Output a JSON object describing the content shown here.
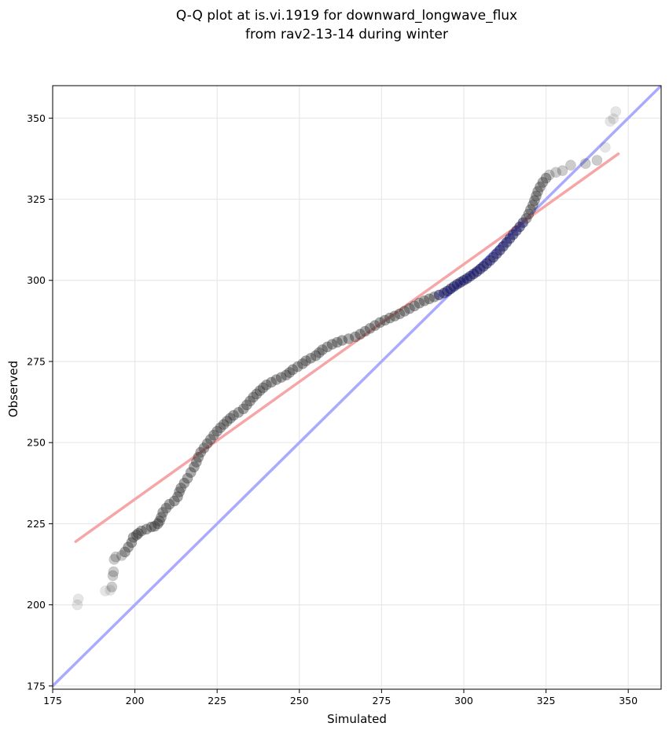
{
  "chart_data": {
    "type": "scatter",
    "title_lines": [
      "Q-Q plot at is.vi.1919 for downward_longwave_flux",
      "from rav2-13-14 during winter"
    ],
    "xlabel": "Simulated",
    "ylabel": "Observed",
    "xlim": [
      175,
      360
    ],
    "ylim": [
      174,
      360
    ],
    "xticks": [
      175,
      200,
      225,
      250,
      275,
      300,
      325,
      350
    ],
    "yticks": [
      175,
      200,
      225,
      250,
      275,
      300,
      325,
      350
    ],
    "grid": true,
    "colors": {
      "points": "#333333",
      "one_to_one": "#aaaaff",
      "fit": "#f6a6a6",
      "middle_points": "#1a1a66"
    },
    "series": [
      {
        "name": "quantile points",
        "points": [
          [
            182.5,
            200
          ],
          [
            182.8,
            201.8
          ],
          [
            191,
            204.3
          ],
          [
            192.5,
            204.5
          ],
          [
            193,
            205.5
          ],
          [
            193.3,
            209
          ],
          [
            193.5,
            210.2
          ],
          [
            193.7,
            214
          ],
          [
            194.2,
            214.8
          ],
          [
            196,
            215.2
          ],
          [
            197,
            216.3
          ],
          [
            198,
            217.8
          ],
          [
            199,
            219.2
          ],
          [
            199.5,
            220.8
          ],
          [
            200.5,
            221.5
          ],
          [
            201,
            222
          ],
          [
            202,
            222.8
          ],
          [
            203.5,
            223.3
          ],
          [
            205,
            224
          ],
          [
            206,
            224.2
          ],
          [
            207,
            225
          ],
          [
            207.5,
            225.8
          ],
          [
            208,
            227
          ],
          [
            208.5,
            228.5
          ],
          [
            209.5,
            229.8
          ],
          [
            210.5,
            231
          ],
          [
            212,
            232
          ],
          [
            213,
            233.3
          ],
          [
            213.5,
            234.8
          ],
          [
            214,
            236
          ],
          [
            215,
            237.5
          ],
          [
            216,
            239
          ],
          [
            217,
            240.8
          ],
          [
            218,
            242.5
          ],
          [
            218.7,
            244
          ],
          [
            219.3,
            245.5
          ],
          [
            220,
            247
          ],
          [
            221,
            248.3
          ],
          [
            222,
            249.7
          ],
          [
            223,
            251
          ],
          [
            224,
            252.3
          ],
          [
            225,
            253.5
          ],
          [
            226,
            254.6
          ],
          [
            227,
            255.6
          ],
          [
            228,
            256.6
          ],
          [
            229,
            257.5
          ],
          [
            230,
            258.4
          ],
          [
            231.5,
            259.3
          ],
          [
            233,
            260.4
          ],
          [
            234,
            261.6
          ],
          [
            235,
            262.8
          ],
          [
            236,
            264
          ],
          [
            237,
            265
          ],
          [
            238,
            266
          ],
          [
            239,
            266.9
          ],
          [
            240,
            267.8
          ],
          [
            241.5,
            268.6
          ],
          [
            243,
            269.4
          ],
          [
            244.5,
            270.1
          ],
          [
            246,
            270.8
          ],
          [
            247,
            271.6
          ],
          [
            248,
            272.5
          ],
          [
            249.5,
            273.4
          ],
          [
            251,
            274.3
          ],
          [
            252,
            275.2
          ],
          [
            253.5,
            276
          ],
          [
            255,
            276.8
          ],
          [
            256,
            277.7
          ],
          [
            257,
            278.6
          ],
          [
            258.5,
            279.5
          ],
          [
            260,
            280.3
          ],
          [
            261.5,
            280.9
          ],
          [
            263,
            281.5
          ],
          [
            265,
            282
          ],
          [
            267,
            282.6
          ],
          [
            268.5,
            283.4
          ],
          [
            270,
            284.3
          ],
          [
            271.5,
            285.2
          ],
          [
            273,
            286.1
          ],
          [
            274.5,
            287
          ],
          [
            276,
            287.7
          ],
          [
            277.5,
            288.4
          ],
          [
            279,
            289
          ],
          [
            280.5,
            289.7
          ],
          [
            282,
            290.5
          ],
          [
            283.5,
            291.3
          ],
          [
            285,
            292.1
          ],
          [
            286.5,
            293
          ],
          [
            288,
            293.7
          ],
          [
            289.5,
            294.3
          ],
          [
            291,
            294.9
          ],
          [
            292.5,
            295.5
          ],
          [
            294,
            296.1
          ],
          [
            295,
            296.7
          ],
          [
            296,
            297.4
          ],
          [
            297,
            298.1
          ],
          [
            298,
            298.8
          ],
          [
            299,
            299.4
          ],
          [
            300,
            300
          ],
          [
            301,
            300.6
          ],
          [
            302,
            301.3
          ],
          [
            303,
            302
          ],
          [
            304,
            302.7
          ],
          [
            305,
            303.5
          ],
          [
            306,
            304.3
          ],
          [
            307,
            305.2
          ],
          [
            308,
            306.1
          ],
          [
            309,
            307.1
          ],
          [
            310,
            308.2
          ],
          [
            311,
            309.3
          ],
          [
            312,
            310.5
          ],
          [
            313,
            311.7
          ],
          [
            314,
            312.9
          ],
          [
            315,
            314.1
          ],
          [
            316,
            315.3
          ],
          [
            317,
            316.5
          ],
          [
            318,
            317.8
          ],
          [
            319,
            319.1
          ],
          [
            319.7,
            320.4
          ],
          [
            320.3,
            321.8
          ],
          [
            321,
            323.2
          ],
          [
            321.5,
            324.6
          ],
          [
            322,
            326
          ],
          [
            322.5,
            327.4
          ],
          [
            323.2,
            328.8
          ],
          [
            324,
            330.2
          ],
          [
            325,
            331.5
          ],
          [
            326,
            332.5
          ],
          [
            328,
            333.3
          ],
          [
            330,
            333.8
          ],
          [
            332.5,
            335.5
          ],
          [
            337,
            336
          ],
          [
            340.5,
            337
          ],
          [
            343,
            341
          ],
          [
            344.5,
            349
          ],
          [
            345.5,
            349.8
          ],
          [
            346.2,
            352
          ]
        ]
      },
      {
        "name": "1:1 line",
        "points": [
          [
            175,
            175
          ],
          [
            360,
            360
          ]
        ]
      },
      {
        "name": "fit line",
        "points": [
          [
            182,
            219.5
          ],
          [
            347,
            339
          ]
        ]
      }
    ]
  }
}
